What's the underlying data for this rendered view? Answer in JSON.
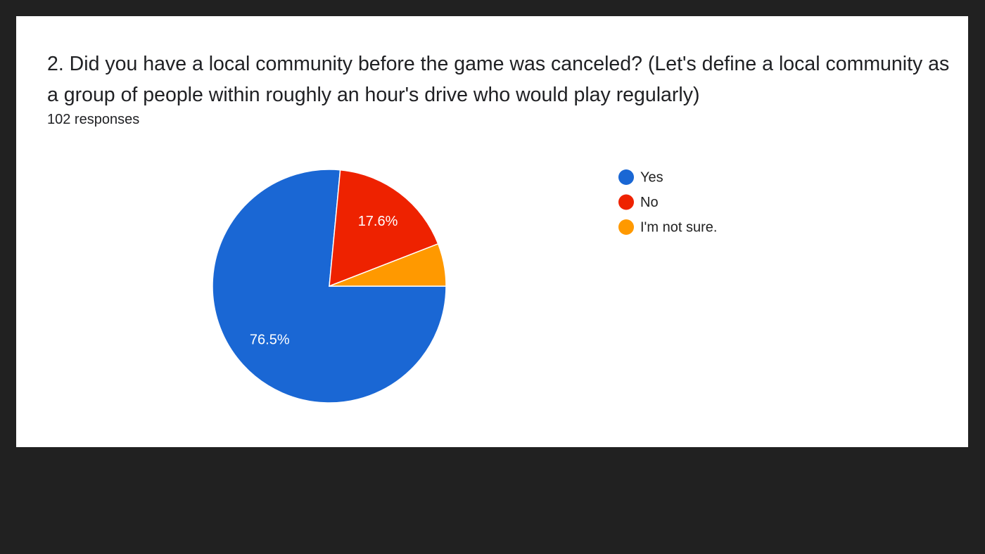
{
  "chart_data": {
    "type": "pie",
    "title": "2. Did you have a local community before the game was canceled? (Let's define a local community as a group of people within roughly an hour's drive who would play regularly)",
    "subtitle": "102 responses",
    "categories": [
      "Yes",
      "No",
      "I'm not sure."
    ],
    "values": [
      76.5,
      17.6,
      5.9
    ],
    "value_labels": [
      "76.5%",
      "17.6%",
      null
    ],
    "colors": [
      "#1a67d4",
      "#ee2200",
      "#ff9900"
    ],
    "legend": "right"
  }
}
